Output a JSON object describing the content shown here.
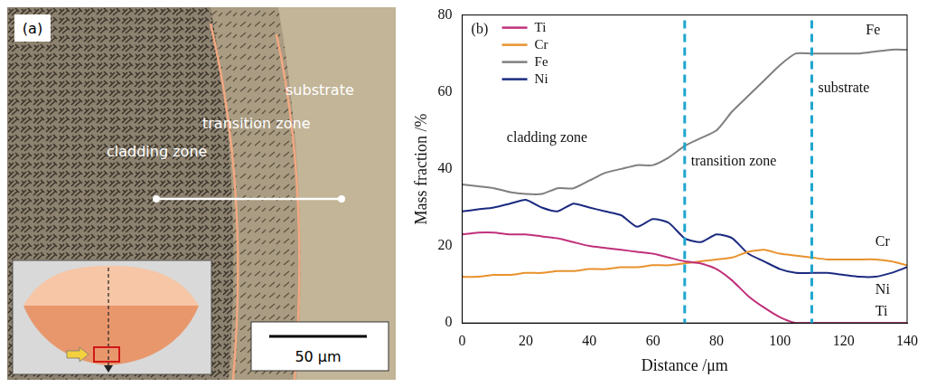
{
  "panel_a": {
    "label": "(a)",
    "annotations": [
      "cladding zone",
      "transition zone",
      "substrate"
    ],
    "scale_bar": "50 μm"
  },
  "chart_data": {
    "type": "line",
    "panel_label": "(b)",
    "x_label": "Distance /μm",
    "y_label": "Mass fraction /%",
    "x": [
      0,
      5,
      10,
      15,
      20,
      25,
      30,
      35,
      40,
      45,
      50,
      55,
      60,
      65,
      70,
      75,
      80,
      85,
      90,
      95,
      100,
      105,
      110,
      115,
      120,
      125,
      130,
      135,
      140
    ],
    "series": [
      {
        "name": "Ti",
        "color": "#c0307a",
        "values": [
          23,
          23.5,
          23.5,
          23,
          23,
          22.5,
          22,
          21,
          20,
          19.5,
          19,
          18.5,
          18,
          17,
          16,
          15.5,
          14,
          11,
          7,
          4,
          1.5,
          0,
          0,
          0,
          0,
          0,
          0,
          0,
          0
        ]
      },
      {
        "name": "Cr",
        "color": "#e8922e",
        "values": [
          12,
          12,
          12.5,
          12.5,
          13,
          13,
          13.5,
          13.5,
          14,
          14,
          14.5,
          14.5,
          15,
          15,
          15.5,
          16,
          16.5,
          17,
          18.5,
          19,
          18,
          17.5,
          17,
          16.5,
          16.5,
          16.5,
          16.5,
          16,
          15
        ]
      },
      {
        "name": "Fe",
        "color": "#7f7f7f",
        "values": [
          36,
          35.5,
          35,
          34,
          33.5,
          33.5,
          35,
          35,
          37,
          39,
          40,
          41,
          41,
          43,
          46,
          48,
          50,
          55,
          59,
          63,
          67,
          70,
          70,
          70,
          70,
          70,
          70.5,
          71,
          71
        ]
      },
      {
        "name": "Ni",
        "color": "#1b2a80",
        "values": [
          29,
          29.5,
          30,
          31,
          32,
          30,
          29,
          31,
          30,
          29,
          28,
          25,
          27,
          26,
          22,
          21,
          23,
          22,
          18,
          16,
          14,
          13,
          13,
          13,
          12.5,
          12,
          12,
          13,
          14.5
        ]
      }
    ],
    "vlines": [
      70,
      110
    ],
    "annotations": [
      {
        "text": "cladding zone",
        "x": 14,
        "y": 48
      },
      {
        "text": "transition zone",
        "x": 72,
        "y": 42
      },
      {
        "text": "substrate",
        "x": 112,
        "y": 61
      },
      {
        "text": "Fe",
        "x": 127,
        "y": 76
      },
      {
        "text": "Cr",
        "x": 130,
        "y": 21
      },
      {
        "text": "Ni",
        "x": 130,
        "y": 8.5
      },
      {
        "text": "Ti",
        "x": 130,
        "y": 3
      }
    ],
    "xlim": [
      0,
      140
    ],
    "xticks": [
      0,
      20,
      40,
      60,
      80,
      100,
      120,
      140
    ],
    "ylim": [
      0,
      80
    ],
    "yticks": [
      0,
      20,
      40,
      60,
      80
    ],
    "grid": false,
    "legend": "upper left"
  }
}
